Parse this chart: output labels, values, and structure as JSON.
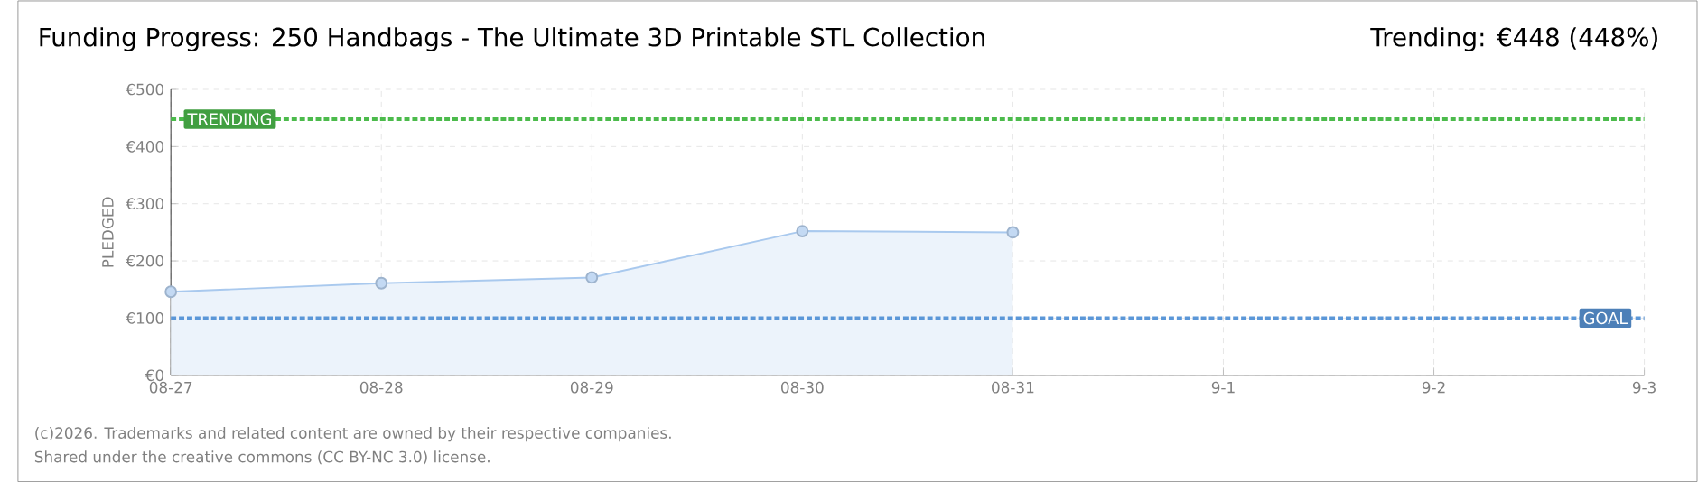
{
  "chart_data": {
    "type": "area",
    "title": "Funding Progress: 250 Handbags - The Ultimate 3D Printable STL Collection",
    "subtitle": "Trending: €448 (448%)",
    "ylabel": "PLEDGED",
    "categories": [
      "08-27",
      "08-28",
      "08-29",
      "08-30",
      "08-31",
      "9-1",
      "9-2",
      "9-3"
    ],
    "values": [
      146,
      161,
      171,
      252,
      250,
      null,
      null,
      null
    ],
    "color": "#a9c9ee",
    "ylim": [
      0,
      500
    ],
    "yticks": [
      {
        "value": 0,
        "label": "€0"
      },
      {
        "value": 100,
        "label": "€100"
      },
      {
        "value": 200,
        "label": "€200"
      },
      {
        "value": 300,
        "label": "€300"
      },
      {
        "value": 400,
        "label": "€400"
      },
      {
        "value": 500,
        "label": "€500"
      }
    ],
    "grid": true,
    "marker": "circle",
    "ref_lines": [
      {
        "axis": "y",
        "value": 448,
        "label": "TRENDING",
        "color": "#4cbb4c",
        "line_style": "dotted"
      },
      {
        "axis": "y",
        "value": 100,
        "label": "GOAL",
        "color": "#5b97d8",
        "line_style": "dotted"
      }
    ],
    "annotations": [
      "(c)2026. Trademarks and related content are owned by their respective companies.",
      "Shared under the creative commons (CC BY-NC 3.0) license."
    ]
  }
}
